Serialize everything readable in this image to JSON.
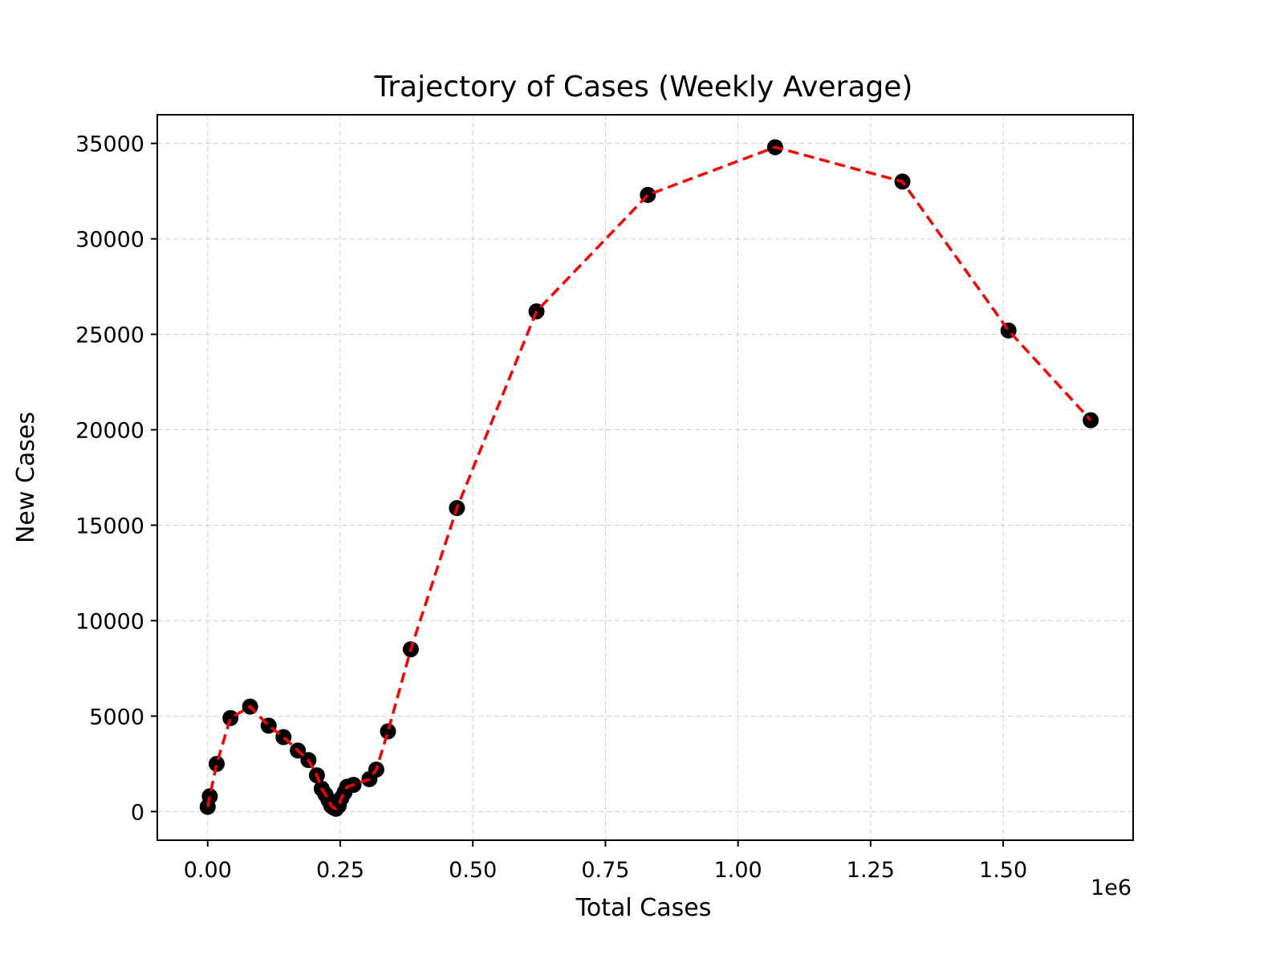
{
  "chart_data": {
    "type": "line",
    "title": "Trajectory of Cases (Weekly Average)",
    "xlabel": "Total Cases",
    "ylabel": "New Cases",
    "x_offset_label": "1e6",
    "xlim": [
      -0.095,
      1.745
    ],
    "ylim": [
      -1500,
      36500
    ],
    "x_ticks": [
      0.0,
      0.25,
      0.5,
      0.75,
      1.0,
      1.25,
      1.5
    ],
    "x_tick_labels": [
      "0.00",
      "0.25",
      "0.50",
      "0.75",
      "1.00",
      "1.25",
      "1.50"
    ],
    "y_ticks": [
      0,
      5000,
      10000,
      15000,
      20000,
      25000,
      30000,
      35000
    ],
    "y_tick_labels": [
      "0",
      "5000",
      "10000",
      "15000",
      "20000",
      "25000",
      "30000",
      "35000"
    ],
    "grid": true,
    "line_color": "#ff0000",
    "marker_color": "#000000",
    "series": [
      {
        "x": [
          0.0,
          0.004,
          0.017,
          0.043,
          0.08,
          0.115,
          0.143,
          0.17,
          0.19,
          0.206,
          0.215,
          0.222,
          0.228,
          0.233,
          0.238,
          0.242,
          0.247,
          0.252,
          0.258,
          0.263,
          0.275,
          0.305,
          0.318,
          0.34,
          0.383,
          0.47,
          0.62,
          0.83,
          1.07,
          1.31,
          1.51,
          1.665
        ],
        "y": [
          250,
          800,
          2500,
          4900,
          5500,
          4500,
          3900,
          3200,
          2700,
          1900,
          1200,
          900,
          600,
          300,
          200,
          150,
          300,
          700,
          1000,
          1300,
          1400,
          1700,
          2200,
          4200,
          8500,
          15900,
          26200,
          32300,
          34800,
          33000,
          25200,
          20500
        ]
      }
    ]
  }
}
